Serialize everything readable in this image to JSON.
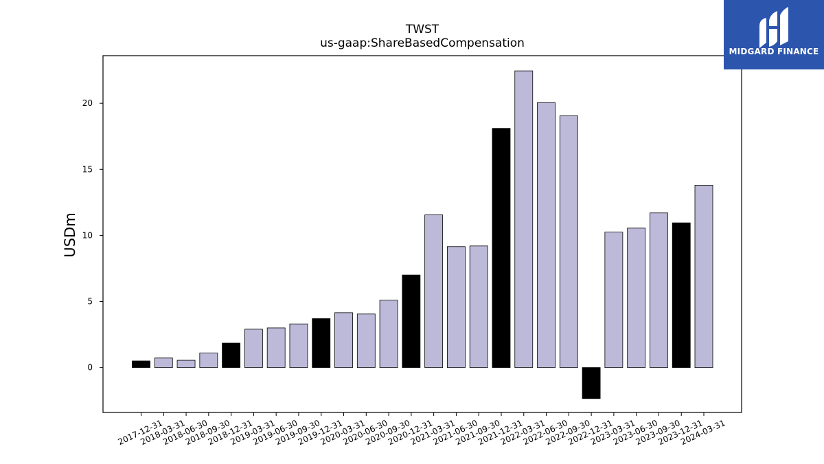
{
  "chart_data": {
    "type": "bar",
    "title": "TWST",
    "subtitle": "us-gaap:ShareBasedCompensation",
    "xlabel": "",
    "ylabel": "USDm",
    "ylim": [
      -3.4,
      23.6
    ],
    "yticks": [
      0,
      5,
      10,
      15,
      20
    ],
    "grid": false,
    "categories": [
      "2017-12-31",
      "2018-03-31",
      "2018-06-30",
      "2018-09-30",
      "2018-12-31",
      "2019-03-31",
      "2019-06-30",
      "2019-09-30",
      "2019-12-31",
      "2020-03-31",
      "2020-06-30",
      "2020-09-30",
      "2020-12-31",
      "2021-03-31",
      "2021-06-30",
      "2021-09-30",
      "2021-12-31",
      "2022-03-31",
      "2022-06-30",
      "2022-09-30",
      "2022-12-31",
      "2023-03-31",
      "2023-06-30",
      "2023-09-30",
      "2023-12-31",
      "2024-03-31"
    ],
    "values": [
      0.5,
      0.72,
      0.55,
      1.1,
      1.85,
      2.9,
      3.0,
      3.3,
      3.7,
      4.15,
      4.05,
      5.1,
      7.0,
      11.55,
      9.15,
      9.2,
      18.1,
      22.45,
      20.05,
      19.05,
      -2.35,
      10.25,
      10.55,
      11.7,
      10.95,
      13.8
    ],
    "colors": {
      "quarter": "#bcb9d9",
      "year_end": "#000000",
      "edge": "#000000"
    },
    "bar_colors": [
      "#000000",
      "#bcb9d9",
      "#bcb9d9",
      "#bcb9d9",
      "#000000",
      "#bcb9d9",
      "#bcb9d9",
      "#bcb9d9",
      "#000000",
      "#bcb9d9",
      "#bcb9d9",
      "#bcb9d9",
      "#000000",
      "#bcb9d9",
      "#bcb9d9",
      "#bcb9d9",
      "#000000",
      "#bcb9d9",
      "#bcb9d9",
      "#bcb9d9",
      "#000000",
      "#bcb9d9",
      "#bcb9d9",
      "#bcb9d9",
      "#000000",
      "#bcb9d9"
    ]
  },
  "logo": {
    "text": "MIDGARD FINANCE",
    "background": "#2c55ad",
    "icon": "midgard-logo-icon"
  }
}
